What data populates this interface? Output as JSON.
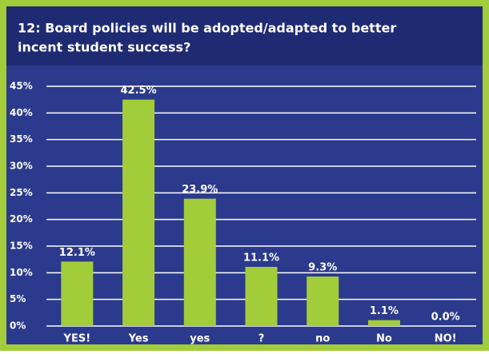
{
  "chart_data": {
    "type": "bar",
    "title": [
      "12: Board policies will be adopted/adapted to better",
      "incent student success?"
    ],
    "categories": [
      "YES!",
      "Yes",
      "yes",
      "?",
      "no",
      "No",
      "NO!"
    ],
    "values": [
      12.1,
      42.5,
      23.9,
      11.1,
      9.3,
      1.1,
      0.0
    ],
    "value_labels": [
      "12.1%",
      "42.5%",
      "23.9%",
      "11.1%",
      "9.3%",
      "1.1%",
      "0.0%"
    ],
    "color": "#a3cc3a",
    "ylim": [
      0,
      45
    ],
    "yticks": [
      {
        "value": 0,
        "label": "0%"
      },
      {
        "value": 5,
        "label": "5%"
      },
      {
        "value": 10,
        "label": "10%"
      },
      {
        "value": 15,
        "label": "15%"
      },
      {
        "value": 20,
        "label": "20%"
      },
      {
        "value": 25,
        "label": "25%"
      },
      {
        "value": 30,
        "label": "30%"
      },
      {
        "value": 35,
        "label": "35%"
      },
      {
        "value": 40,
        "label": "40%"
      },
      {
        "value": 45,
        "label": "45%"
      }
    ],
    "grid": true
  }
}
